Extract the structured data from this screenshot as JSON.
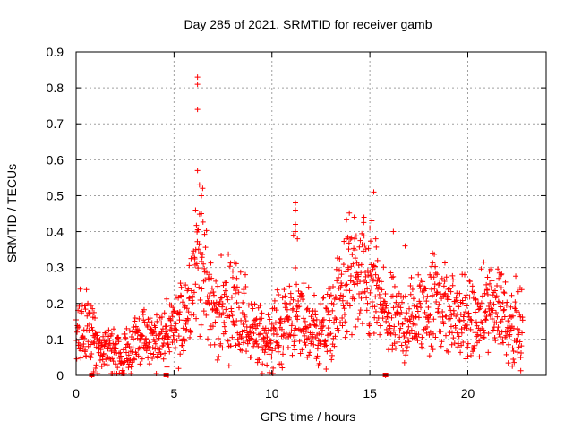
{
  "chart_data": {
    "type": "scatter",
    "title": "Day 285 of 2021, SRMTID for receiver gamb",
    "xlabel": "GPS time / hours",
    "ylabel": "SRMTID / TECUs",
    "xlim": [
      0,
      24
    ],
    "ylim": [
      0,
      0.9
    ],
    "x_ticks": [
      0,
      5,
      10,
      15,
      20
    ],
    "x_tick_labels": [
      "0",
      "5",
      "10",
      "15",
      "20"
    ],
    "y_ticks": [
      0,
      0.1,
      0.2,
      0.3,
      0.4,
      0.5,
      0.6,
      0.7,
      0.8,
      0.9
    ],
    "y_tick_labels": [
      "0",
      "0.1",
      "0.2",
      "0.3",
      "0.4",
      "0.5",
      "0.6",
      "0.7",
      "0.8",
      "0.9"
    ],
    "grid": true,
    "marker": "plus",
    "marker_color": "#ff0000",
    "sampling_hours": 0.016,
    "baseline_profile": {
      "hours": [
        0,
        0.5,
        1,
        1.5,
        2,
        2.3,
        2.6,
        3,
        3.5,
        4,
        4.5,
        5,
        5.5,
        5.9,
        6.3,
        6.6,
        7,
        7.5,
        8,
        8.5,
        9,
        9.5,
        10,
        10.5,
        11,
        11.5,
        12,
        12.5,
        13,
        13.5,
        14,
        14.5,
        15,
        15.5,
        16,
        16.5,
        17,
        17.5,
        18,
        18.5,
        19,
        19.5,
        20,
        20.5,
        21,
        21.5,
        22,
        22.5,
        22.8
      ],
      "values": [
        0.11,
        0.12,
        0.1,
        0.09,
        0.06,
        0.04,
        0.06,
        0.09,
        0.1,
        0.1,
        0.1,
        0.12,
        0.16,
        0.25,
        0.36,
        0.25,
        0.18,
        0.17,
        0.2,
        0.16,
        0.11,
        0.1,
        0.11,
        0.13,
        0.17,
        0.15,
        0.13,
        0.12,
        0.14,
        0.22,
        0.28,
        0.25,
        0.24,
        0.2,
        0.15,
        0.14,
        0.15,
        0.17,
        0.2,
        0.22,
        0.18,
        0.16,
        0.15,
        0.14,
        0.18,
        0.2,
        0.16,
        0.14,
        0.12
      ]
    },
    "notable_points": [
      {
        "x": 6.2,
        "y": 0.83
      },
      {
        "x": 6.2,
        "y": 0.81
      },
      {
        "x": 6.2,
        "y": 0.74
      },
      {
        "x": 6.2,
        "y": 0.57
      },
      {
        "x": 6.3,
        "y": 0.53
      },
      {
        "x": 6.4,
        "y": 0.5
      },
      {
        "x": 6.1,
        "y": 0.46
      },
      {
        "x": 6.4,
        "y": 0.45
      },
      {
        "x": 11.2,
        "y": 0.48
      },
      {
        "x": 11.2,
        "y": 0.46
      },
      {
        "x": 11.2,
        "y": 0.42
      },
      {
        "x": 11.2,
        "y": 0.4
      },
      {
        "x": 11.1,
        "y": 0.39
      },
      {
        "x": 11.3,
        "y": 0.38
      },
      {
        "x": 14.2,
        "y": 0.44
      },
      {
        "x": 14.7,
        "y": 0.44
      },
      {
        "x": 15.2,
        "y": 0.51
      },
      {
        "x": 15.1,
        "y": 0.43
      },
      {
        "x": 15.0,
        "y": 0.41
      },
      {
        "x": 13.8,
        "y": 0.38
      },
      {
        "x": 15.3,
        "y": 0.38
      },
      {
        "x": 16.2,
        "y": 0.4
      },
      {
        "x": 16.8,
        "y": 0.36
      },
      {
        "x": 18.2,
        "y": 0.34
      },
      {
        "x": 21.1,
        "y": 0.29
      },
      {
        "x": 21.7,
        "y": 0.28
      },
      {
        "x": 8.0,
        "y": 0.29
      },
      {
        "x": 8.2,
        "y": 0.27
      },
      {
        "x": 0.6,
        "y": 0.2
      },
      {
        "x": 0.8,
        "y": 0.0
      },
      {
        "x": 0.9,
        "y": 0.01
      },
      {
        "x": 1.0,
        "y": 0.02
      },
      {
        "x": 4.7,
        "y": 0.0
      },
      {
        "x": 15.8,
        "y": 0.0
      },
      {
        "x": 22.7,
        "y": 0.05
      }
    ]
  }
}
